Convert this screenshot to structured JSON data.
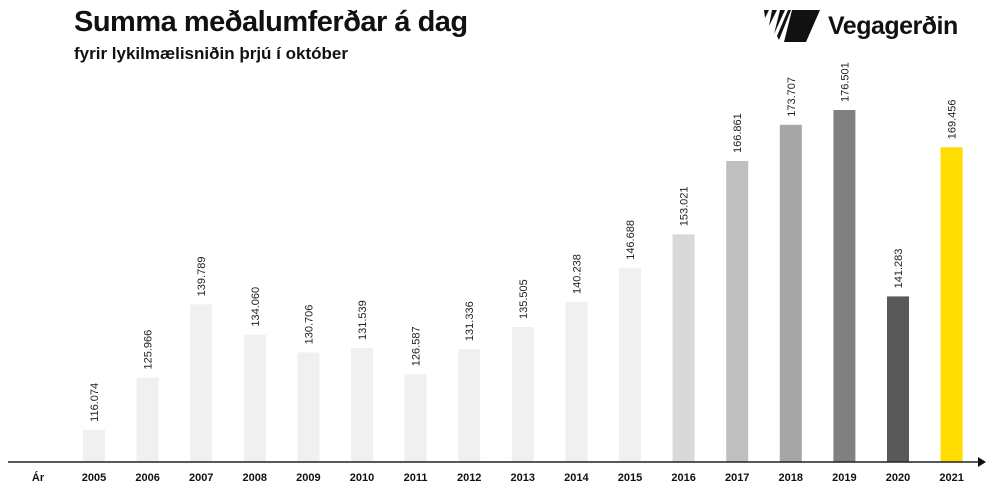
{
  "header": {
    "title": "Summa meðalumferðar á dag",
    "subtitle": "fyrir lykilmælisniðin þrjú í október"
  },
  "logo": {
    "text": "Vegagerðin",
    "icon": "vegagerdin-stripes-logo"
  },
  "chart_data": {
    "type": "bar",
    "title": "Summa meðalumferðar á dag",
    "subtitle": "fyrir lykilmælisniðin þrjú í október",
    "xlabel": "Ár",
    "ylabel": "",
    "categories": [
      "2005",
      "2006",
      "2007",
      "2008",
      "2009",
      "2010",
      "2011",
      "2012",
      "2013",
      "2014",
      "2015",
      "2016",
      "2017",
      "2018",
      "2019",
      "2020",
      "2021"
    ],
    "values": [
      116074,
      125966,
      139789,
      134060,
      130706,
      131539,
      126587,
      131336,
      135505,
      140238,
      146688,
      153021,
      166861,
      173707,
      176501,
      141283,
      169456
    ],
    "data_labels": [
      "116.074",
      "125.966",
      "139.789",
      "134.060",
      "130.706",
      "131.539",
      "126.587",
      "131.336",
      "135.505",
      "140.238",
      "146.688",
      "153.021",
      "166.861",
      "173.707",
      "176.501",
      "141.283",
      "169.456"
    ],
    "colors": [
      "#f0f0f0",
      "#f0f0f0",
      "#f0f0f0",
      "#f0f0f0",
      "#f0f0f0",
      "#f0f0f0",
      "#f0f0f0",
      "#f0f0f0",
      "#f0f0f0",
      "#f0f0f0",
      "#f0f0f0",
      "#d9d9d9",
      "#bfbfbf",
      "#a6a6a6",
      "#808080",
      "#595959",
      "#ffdd00"
    ],
    "ylim": [
      110000,
      180000
    ],
    "grid": false,
    "y_axis_visible": false,
    "legend": "none"
  }
}
